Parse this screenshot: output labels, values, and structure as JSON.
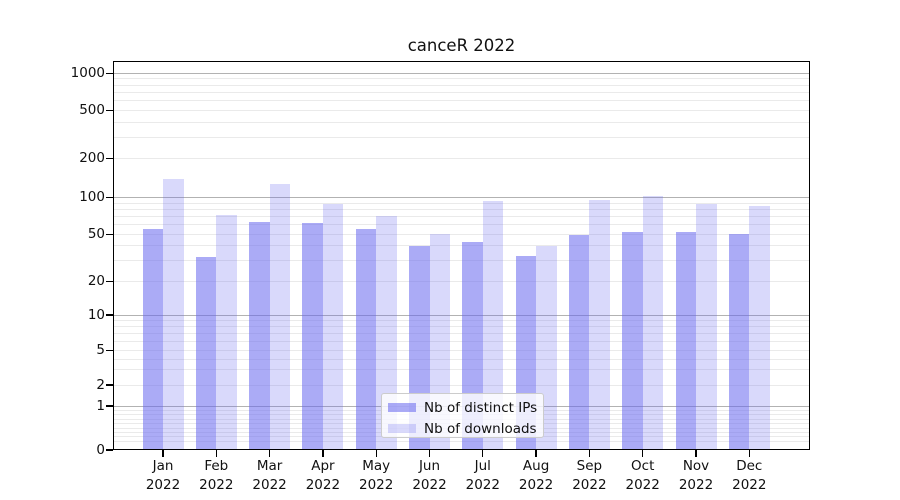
{
  "title": "canceR 2022",
  "chart_data": {
    "type": "bar",
    "title": "canceR 2022",
    "scale": "pseudo-log",
    "grid": true,
    "legend_position": "lower center",
    "categories": [
      "Jan",
      "Feb",
      "Mar",
      "Apr",
      "May",
      "Jun",
      "Jul",
      "Aug",
      "Sep",
      "Oct",
      "Nov",
      "Dec"
    ],
    "x_year": "2022",
    "y_ticks": [
      0,
      1,
      2,
      5,
      10,
      20,
      50,
      100,
      200,
      500,
      1000
    ],
    "ylim": [
      0,
      1300
    ],
    "series": [
      {
        "name": "Nb of distinct IPs",
        "color": "rgba(102,102,238,0.55)",
        "values": [
          55,
          32,
          63,
          62,
          55,
          40,
          43,
          33,
          49,
          52,
          52,
          50
        ]
      },
      {
        "name": "Nb of downloads",
        "color": "rgba(102,102,238,0.25)",
        "values": [
          138,
          72,
          127,
          88,
          71,
          50,
          94,
          40,
          95,
          102,
          89,
          86
        ]
      }
    ]
  },
  "colors": {
    "bar_base": "#6666ee",
    "grid_major": "#b2b2b2",
    "grid_minor": "#eaeaea",
    "axis": "#000000",
    "text": "#111111",
    "legend_border": "#cccccc"
  }
}
